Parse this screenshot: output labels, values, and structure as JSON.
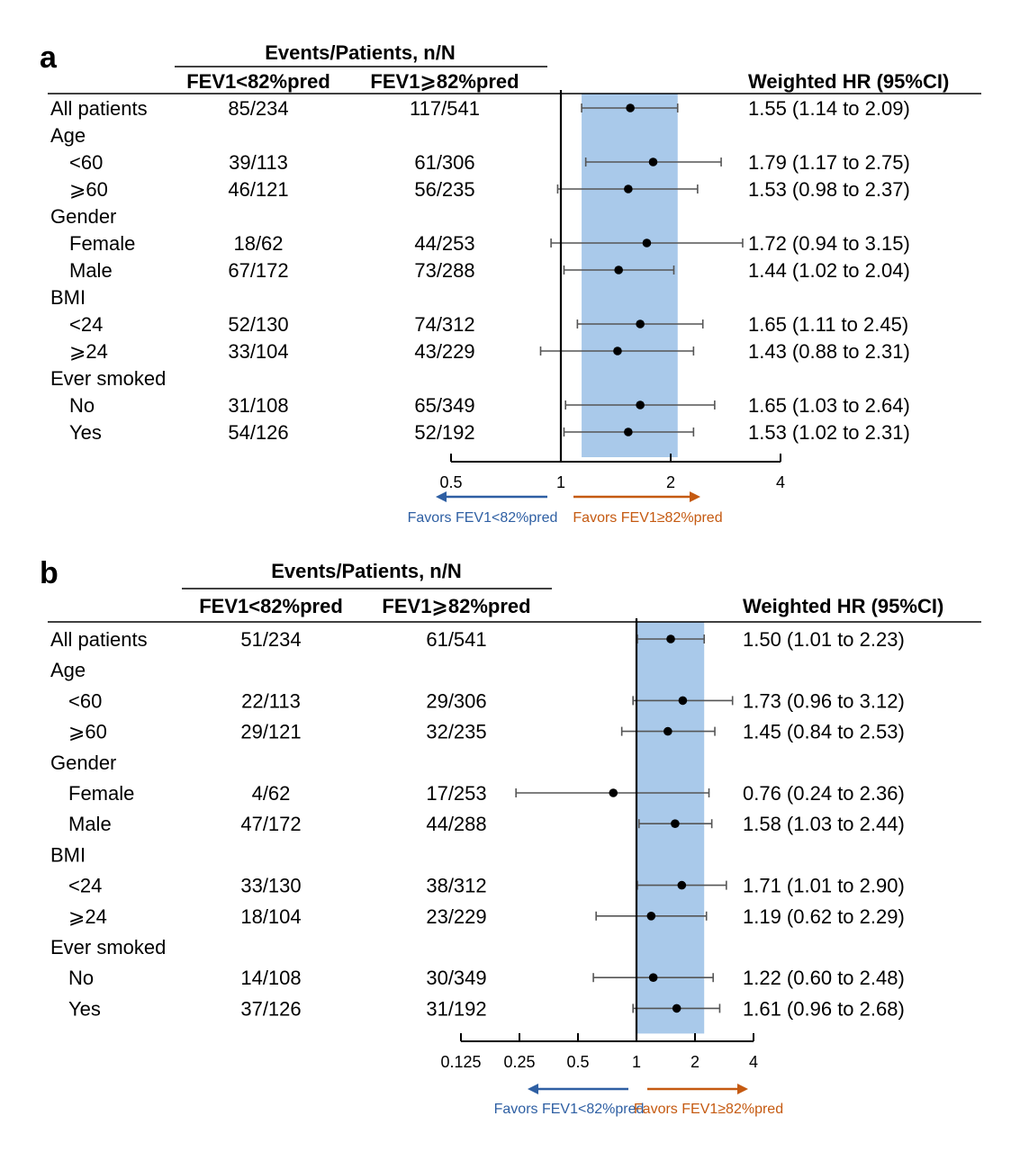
{
  "panels": [
    {
      "letter": "a",
      "events_header": "Events/Patients, n/N",
      "col1_header": "FEV1<82%pred",
      "col2_header": "FEV1⩾82%pred",
      "hr_header": "Weighted HR (95%CI)",
      "favors_left": "Favors FEV1<82%pred",
      "favors_right": "Favors FEV1≥82%pred",
      "left_arrow_color": "#2e5fa3",
      "right_arrow_color": "#c55a11",
      "band_color": "#a9c9ea"
    },
    {
      "letter": "b",
      "events_header": "Events/Patients, n/N",
      "col1_header": "FEV1<82%pred",
      "col2_header": "FEV1⩾82%pred",
      "hr_header": "Weighted HR (95%CI)",
      "favors_left": "Favors FEV1<82%pred",
      "favors_right": "Favors FEV1≥82%pred",
      "left_arrow_color": "#2e5fa3",
      "right_arrow_color": "#c55a11",
      "band_color": "#a9c9ea"
    }
  ],
  "chart_data": [
    {
      "type": "forest",
      "x_scale": "log",
      "xlim": [
        0.5,
        4
      ],
      "xticks": [
        0.5,
        1,
        2,
        4
      ],
      "xtick_labels": [
        "0.5",
        "1",
        "2",
        "4"
      ],
      "reference_line": 1,
      "shaded_band": [
        1.14,
        2.09
      ],
      "rows": [
        {
          "label": "All patients",
          "indent": false,
          "c1": "85/234",
          "c2": "117/541",
          "hr": 1.55,
          "lo": 1.14,
          "hi": 2.09,
          "hr_text": "1.55 (1.14 to 2.09)"
        },
        {
          "label": "Age",
          "indent": false,
          "c1": "",
          "c2": "",
          "hr_text": ""
        },
        {
          "label": "<60",
          "indent": true,
          "c1": "39/113",
          "c2": "61/306",
          "hr": 1.79,
          "lo": 1.17,
          "hi": 2.75,
          "hr_text": "1.79 (1.17 to 2.75)"
        },
        {
          "label": "⩾60",
          "indent": true,
          "c1": "46/121",
          "c2": "56/235",
          "hr": 1.53,
          "lo": 0.98,
          "hi": 2.37,
          "hr_text": "1.53 (0.98 to 2.37)"
        },
        {
          "label": "Gender",
          "indent": false,
          "c1": "",
          "c2": "",
          "hr_text": ""
        },
        {
          "label": "Female",
          "indent": true,
          "c1": "18/62",
          "c2": "44/253",
          "hr": 1.72,
          "lo": 0.94,
          "hi": 3.15,
          "hr_text": "1.72 (0.94 to 3.15)"
        },
        {
          "label": "Male",
          "indent": true,
          "c1": "67/172",
          "c2": "73/288",
          "hr": 1.44,
          "lo": 1.02,
          "hi": 2.04,
          "hr_text": "1.44 (1.02 to 2.04)"
        },
        {
          "label": "BMI",
          "indent": false,
          "c1": "",
          "c2": "",
          "hr_text": ""
        },
        {
          "label": "<24",
          "indent": true,
          "c1": "52/130",
          "c2": "74/312",
          "hr": 1.65,
          "lo": 1.11,
          "hi": 2.45,
          "hr_text": "1.65 (1.11 to 2.45)"
        },
        {
          "label": "⩾24",
          "indent": true,
          "c1": "33/104",
          "c2": "43/229",
          "hr": 1.43,
          "lo": 0.88,
          "hi": 2.31,
          "hr_text": "1.43 (0.88 to 2.31)"
        },
        {
          "label": "Ever smoked",
          "indent": false,
          "c1": "",
          "c2": "",
          "hr_text": ""
        },
        {
          "label": "No",
          "indent": true,
          "c1": "31/108",
          "c2": "65/349",
          "hr": 1.65,
          "lo": 1.03,
          "hi": 2.64,
          "hr_text": "1.65 (1.03 to 2.64)"
        },
        {
          "label": "Yes",
          "indent": true,
          "c1": "54/126",
          "c2": "52/192",
          "hr": 1.53,
          "lo": 1.02,
          "hi": 2.31,
          "hr_text": "1.53 (1.02 to 2.31)"
        }
      ]
    },
    {
      "type": "forest",
      "x_scale": "log",
      "xlim": [
        0.125,
        4
      ],
      "xticks": [
        0.125,
        0.25,
        0.5,
        1,
        2,
        4
      ],
      "xtick_labels": [
        "0.125",
        "0.25",
        "0.5",
        "1",
        "2",
        "4"
      ],
      "reference_line": 1,
      "shaded_band": [
        1.01,
        2.23
      ],
      "rows": [
        {
          "label": "All patients",
          "indent": false,
          "c1": "51/234",
          "c2": "61/541",
          "hr": 1.5,
          "lo": 1.01,
          "hi": 2.23,
          "hr_text": "1.50 (1.01 to 2.23)"
        },
        {
          "label": "Age",
          "indent": false,
          "c1": "",
          "c2": "",
          "hr_text": ""
        },
        {
          "label": "<60",
          "indent": true,
          "c1": "22/113",
          "c2": "29/306",
          "hr": 1.73,
          "lo": 0.96,
          "hi": 3.12,
          "hr_text": "1.73 (0.96 to 3.12)"
        },
        {
          "label": "⩾60",
          "indent": true,
          "c1": "29/121",
          "c2": "32/235",
          "hr": 1.45,
          "lo": 0.84,
          "hi": 2.53,
          "hr_text": "1.45 (0.84 to 2.53)"
        },
        {
          "label": "Gender",
          "indent": false,
          "c1": "",
          "c2": "",
          "hr_text": ""
        },
        {
          "label": "Female",
          "indent": true,
          "c1": "4/62",
          "c2": "17/253",
          "hr": 0.76,
          "lo": 0.24,
          "hi": 2.36,
          "hr_text": "0.76 (0.24 to 2.36)"
        },
        {
          "label": "Male",
          "indent": true,
          "c1": "47/172",
          "c2": "44/288",
          "hr": 1.58,
          "lo": 1.03,
          "hi": 2.44,
          "hr_text": "1.58 (1.03 to 2.44)"
        },
        {
          "label": "BMI",
          "indent": false,
          "c1": "",
          "c2": "",
          "hr_text": ""
        },
        {
          "label": "<24",
          "indent": true,
          "c1": "33/130",
          "c2": "38/312",
          "hr": 1.71,
          "lo": 1.01,
          "hi": 2.9,
          "hr_text": "1.71 (1.01 to 2.90)"
        },
        {
          "label": "⩾24",
          "indent": true,
          "c1": "18/104",
          "c2": "23/229",
          "hr": 1.19,
          "lo": 0.62,
          "hi": 2.29,
          "hr_text": "1.19 (0.62 to 2.29)"
        },
        {
          "label": "Ever smoked",
          "indent": false,
          "c1": "",
          "c2": "",
          "hr_text": ""
        },
        {
          "label": "No",
          "indent": true,
          "c1": "14/108",
          "c2": "30/349",
          "hr": 1.22,
          "lo": 0.6,
          "hi": 2.48,
          "hr_text": "1.22 (0.60 to 2.48)"
        },
        {
          "label": "Yes",
          "indent": true,
          "c1": "37/126",
          "c2": "31/192",
          "hr": 1.61,
          "lo": 0.96,
          "hi": 2.68,
          "hr_text": "1.61 (0.96 to 2.68)"
        }
      ]
    }
  ]
}
